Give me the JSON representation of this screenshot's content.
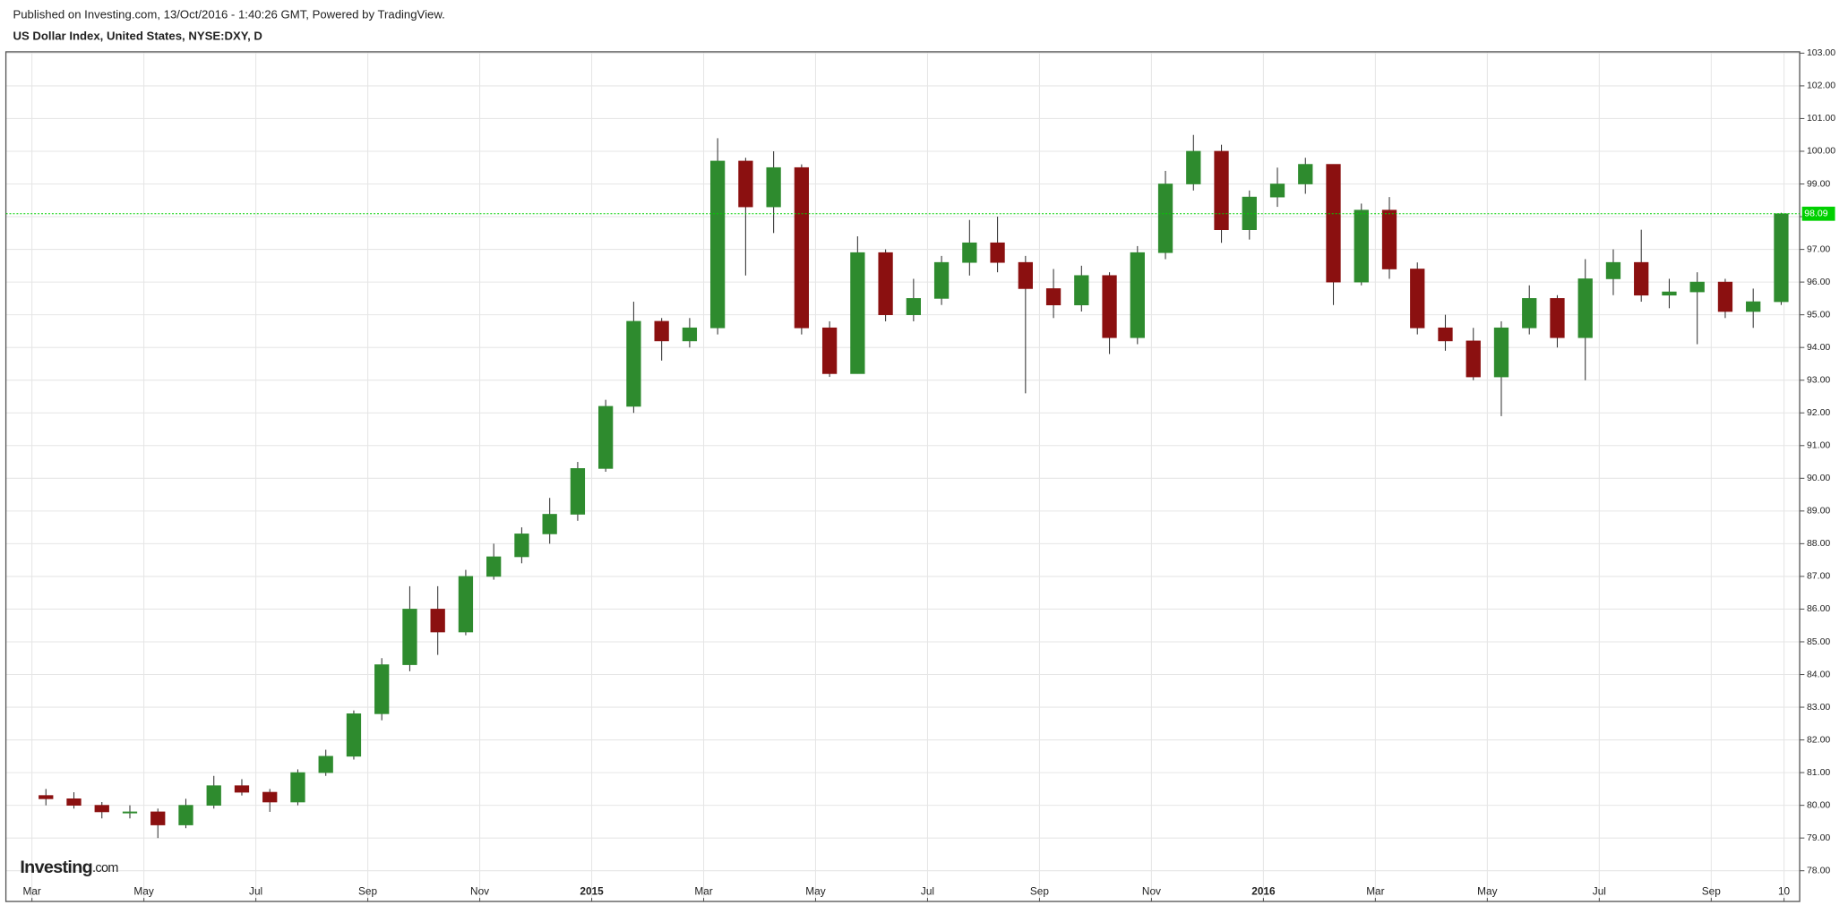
{
  "chart_data": {
    "type": "candlestick",
    "subtitle": "Published on Investing.com, 13/Oct/2016 - 1:40:26 GMT, Powered by TradingView.",
    "title": "US Dollar Index, United States, NYSE:DXY, D",
    "open": [
      80.3,
      80.2,
      80.0,
      79.8,
      79.8,
      79.4,
      80.0,
      80.6,
      80.4,
      80.1,
      81.0,
      81.5,
      82.8,
      84.3,
      86.0,
      85.3,
      87.0,
      87.6,
      88.3,
      88.9,
      90.3,
      92.2,
      94.8,
      94.2,
      94.6,
      99.7,
      98.3,
      99.5,
      94.6,
      93.2,
      96.9,
      95.0,
      95.5,
      96.6,
      97.2,
      96.6,
      95.8,
      95.3,
      96.2,
      94.3,
      96.9,
      99.0,
      100.0,
      97.6,
      98.6,
      99.0,
      99.6,
      96.0,
      98.2,
      96.4,
      94.6,
      94.2,
      93.1,
      94.6,
      95.5,
      94.3,
      96.1,
      96.6,
      95.6,
      95.7,
      96.0,
      95.1,
      95.4
    ],
    "high": [
      80.5,
      80.4,
      80.1,
      80.0,
      79.9,
      80.2,
      80.9,
      80.8,
      80.5,
      81.1,
      81.7,
      82.9,
      84.5,
      86.7,
      86.7,
      87.2,
      88.0,
      88.5,
      89.4,
      90.5,
      92.4,
      95.4,
      94.9,
      94.9,
      100.4,
      99.8,
      100.0,
      99.6,
      94.8,
      97.4,
      97.0,
      96.1,
      96.8,
      97.9,
      98.0,
      96.8,
      96.4,
      96.5,
      96.3,
      97.1,
      99.4,
      100.5,
      100.2,
      98.8,
      99.5,
      99.8,
      99.6,
      98.4,
      98.6,
      96.6,
      95.0,
      94.6,
      94.8,
      95.9,
      95.6,
      96.7,
      97.0,
      97.6,
      96.1,
      96.3,
      96.1,
      95.8,
      98.12
    ],
    "low": [
      80.0,
      79.9,
      79.6,
      79.6,
      79.0,
      79.3,
      79.9,
      80.3,
      79.8,
      80.0,
      80.9,
      81.4,
      82.6,
      84.1,
      84.6,
      85.2,
      86.9,
      87.4,
      88.0,
      88.7,
      90.2,
      92.0,
      93.6,
      94.0,
      94.4,
      96.2,
      97.5,
      94.4,
      93.1,
      93.2,
      94.8,
      94.8,
      95.3,
      96.2,
      96.3,
      92.6,
      94.9,
      95.1,
      93.8,
      94.1,
      96.7,
      98.8,
      97.2,
      97.3,
      98.3,
      98.7,
      95.3,
      95.9,
      96.1,
      94.4,
      93.9,
      93.0,
      91.9,
      94.4,
      94.0,
      93.0,
      95.6,
      95.4,
      95.2,
      94.1,
      94.9,
      94.6,
      95.3
    ],
    "close": [
      80.2,
      80.0,
      79.8,
      79.8,
      79.4,
      80.0,
      80.6,
      80.4,
      80.1,
      81.0,
      81.5,
      82.8,
      84.3,
      86.0,
      85.3,
      87.0,
      87.6,
      88.3,
      88.9,
      90.3,
      92.2,
      94.8,
      94.2,
      94.6,
      99.7,
      98.3,
      99.5,
      94.6,
      93.2,
      96.9,
      95.0,
      95.5,
      96.6,
      97.2,
      96.6,
      95.8,
      95.3,
      96.2,
      94.3,
      96.9,
      99.0,
      100.0,
      97.6,
      98.6,
      99.0,
      99.6,
      96.0,
      98.2,
      96.4,
      94.6,
      94.2,
      93.1,
      94.6,
      95.5,
      94.3,
      96.1,
      96.6,
      95.6,
      95.7,
      96.0,
      95.1,
      95.4,
      98.09
    ],
    "xlim": [
      -1.43,
      62.66
    ],
    "xticks": [
      {
        "value": -0.5,
        "label": "Mar"
      },
      {
        "value": 3.5,
        "label": "May"
      },
      {
        "value": 7.5,
        "label": "Jul"
      },
      {
        "value": 11.5,
        "label": "Sep"
      },
      {
        "value": 15.5,
        "label": "Nov"
      },
      {
        "value": 19.5,
        "label": "2015"
      },
      {
        "value": 23.5,
        "label": "Mar"
      },
      {
        "value": 27.5,
        "label": "May"
      },
      {
        "value": 31.5,
        "label": "Jul"
      },
      {
        "value": 35.5,
        "label": "Sep"
      },
      {
        "value": 39.5,
        "label": "Nov"
      },
      {
        "value": 43.5,
        "label": "2016"
      },
      {
        "value": 47.5,
        "label": "Mar"
      },
      {
        "value": 51.5,
        "label": "May"
      },
      {
        "value": 55.5,
        "label": "Jul"
      },
      {
        "value": 59.5,
        "label": "Sep"
      },
      {
        "value": 62.1,
        "label": "10"
      }
    ],
    "ylim": [
      77.06,
      103.04
    ],
    "yticks": [
      {
        "value": 78,
        "label": "78.00"
      },
      {
        "value": 79,
        "label": "79.00"
      },
      {
        "value": 80,
        "label": "80.00"
      },
      {
        "value": 81,
        "label": "81.00"
      },
      {
        "value": 82,
        "label": "82.00"
      },
      {
        "value": 83,
        "label": "83.00"
      },
      {
        "value": 84,
        "label": "84.00"
      },
      {
        "value": 85,
        "label": "85.00"
      },
      {
        "value": 86,
        "label": "86.00"
      },
      {
        "value": 87,
        "label": "87.00"
      },
      {
        "value": 88,
        "label": "88.00"
      },
      {
        "value": 89,
        "label": "89.00"
      },
      {
        "value": 90,
        "label": "90.00"
      },
      {
        "value": 91,
        "label": "91.00"
      },
      {
        "value": 92,
        "label": "92.00"
      },
      {
        "value": 93,
        "label": "93.00"
      },
      {
        "value": 94,
        "label": "94.00"
      },
      {
        "value": 95,
        "label": "95.00"
      },
      {
        "value": 96,
        "label": "96.00"
      },
      {
        "value": 97,
        "label": "97.00"
      },
      {
        "value": 98,
        "label": "98.00"
      },
      {
        "value": 99,
        "label": "99.00"
      },
      {
        "value": 100,
        "label": "100.00"
      },
      {
        "value": 101,
        "label": "101.00"
      },
      {
        "value": 102,
        "label": "102.00"
      },
      {
        "value": 103,
        "label": "103.00"
      }
    ],
    "grid": true,
    "up_color": "#2e8b2e",
    "down_color": "#8b1010",
    "last_price": 98.09,
    "last_price_color": "#00d000"
  },
  "logo": {
    "name": "Investing",
    "suffix": ".com"
  }
}
